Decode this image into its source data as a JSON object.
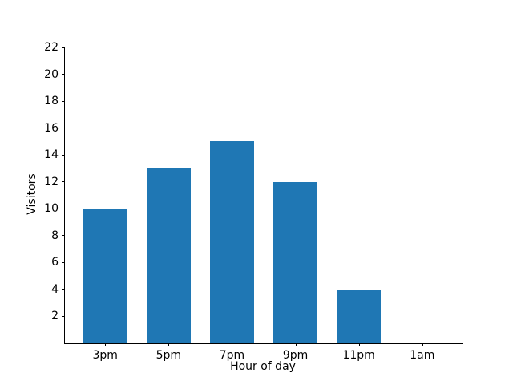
{
  "chart_data": {
    "type": "bar",
    "categories": [
      "3pm",
      "5pm",
      "7pm",
      "9pm",
      "11pm",
      "1am"
    ],
    "values": [
      10,
      13,
      15,
      12,
      4,
      0
    ],
    "title": "",
    "xlabel": "Hour of day",
    "ylabel": "Visitors",
    "ylim": [
      0,
      22
    ],
    "yticks": [
      2,
      4,
      6,
      8,
      10,
      12,
      14,
      16,
      18,
      20,
      22
    ],
    "bar_color": "#1f77b4",
    "bar_width_fraction": 0.7,
    "grid": false,
    "legend": "none",
    "axis_color": "#000000",
    "background_color": "#ffffff"
  }
}
